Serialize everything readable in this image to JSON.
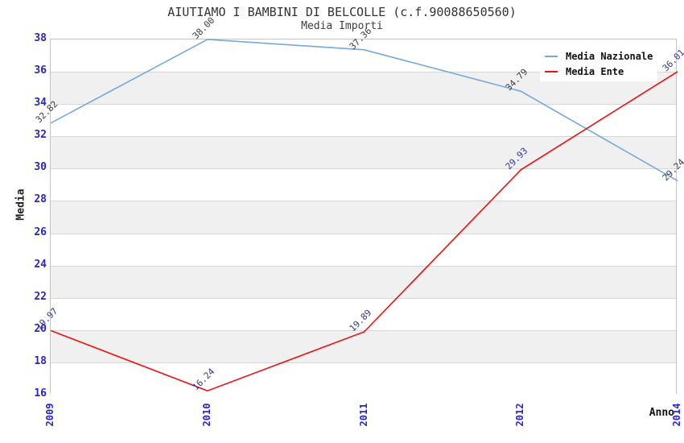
{
  "chart_data": {
    "type": "line",
    "title": "AIUTIAMO I BAMBINI DI BELCOLLE (c.f.90088650560)",
    "subtitle": "Media Importi",
    "xlabel": "Anno",
    "ylabel": "Media",
    "categories": [
      "2009",
      "2010",
      "2011",
      "2012",
      "2014"
    ],
    "series": [
      {
        "name": "Media Nazionale",
        "color": "#74a9de",
        "label_color": "#3c3c3c",
        "values": [
          32.82,
          38.0,
          37.36,
          34.79,
          29.24
        ],
        "labels": [
          "32.82",
          "38.00",
          "37.36",
          "34.79",
          "29.24"
        ]
      },
      {
        "name": "Media Ente",
        "color": "#ee1111",
        "label_color": "#333399",
        "values": [
          19.97,
          16.24,
          19.89,
          29.93,
          36.01
        ],
        "labels": [
          "19.97",
          "16.24",
          "19.89",
          "29.93",
          "36.01"
        ]
      }
    ],
    "ylim": [
      16,
      38
    ],
    "yticks": [
      38,
      36,
      34,
      32,
      30,
      28,
      26,
      24,
      22,
      20,
      18,
      16
    ],
    "grid": "horizontal",
    "legend_position": "top-right",
    "axis_label_color": "#2626c9",
    "band_color": "#f0f0f0",
    "grid_color": "#d6d6d6"
  }
}
